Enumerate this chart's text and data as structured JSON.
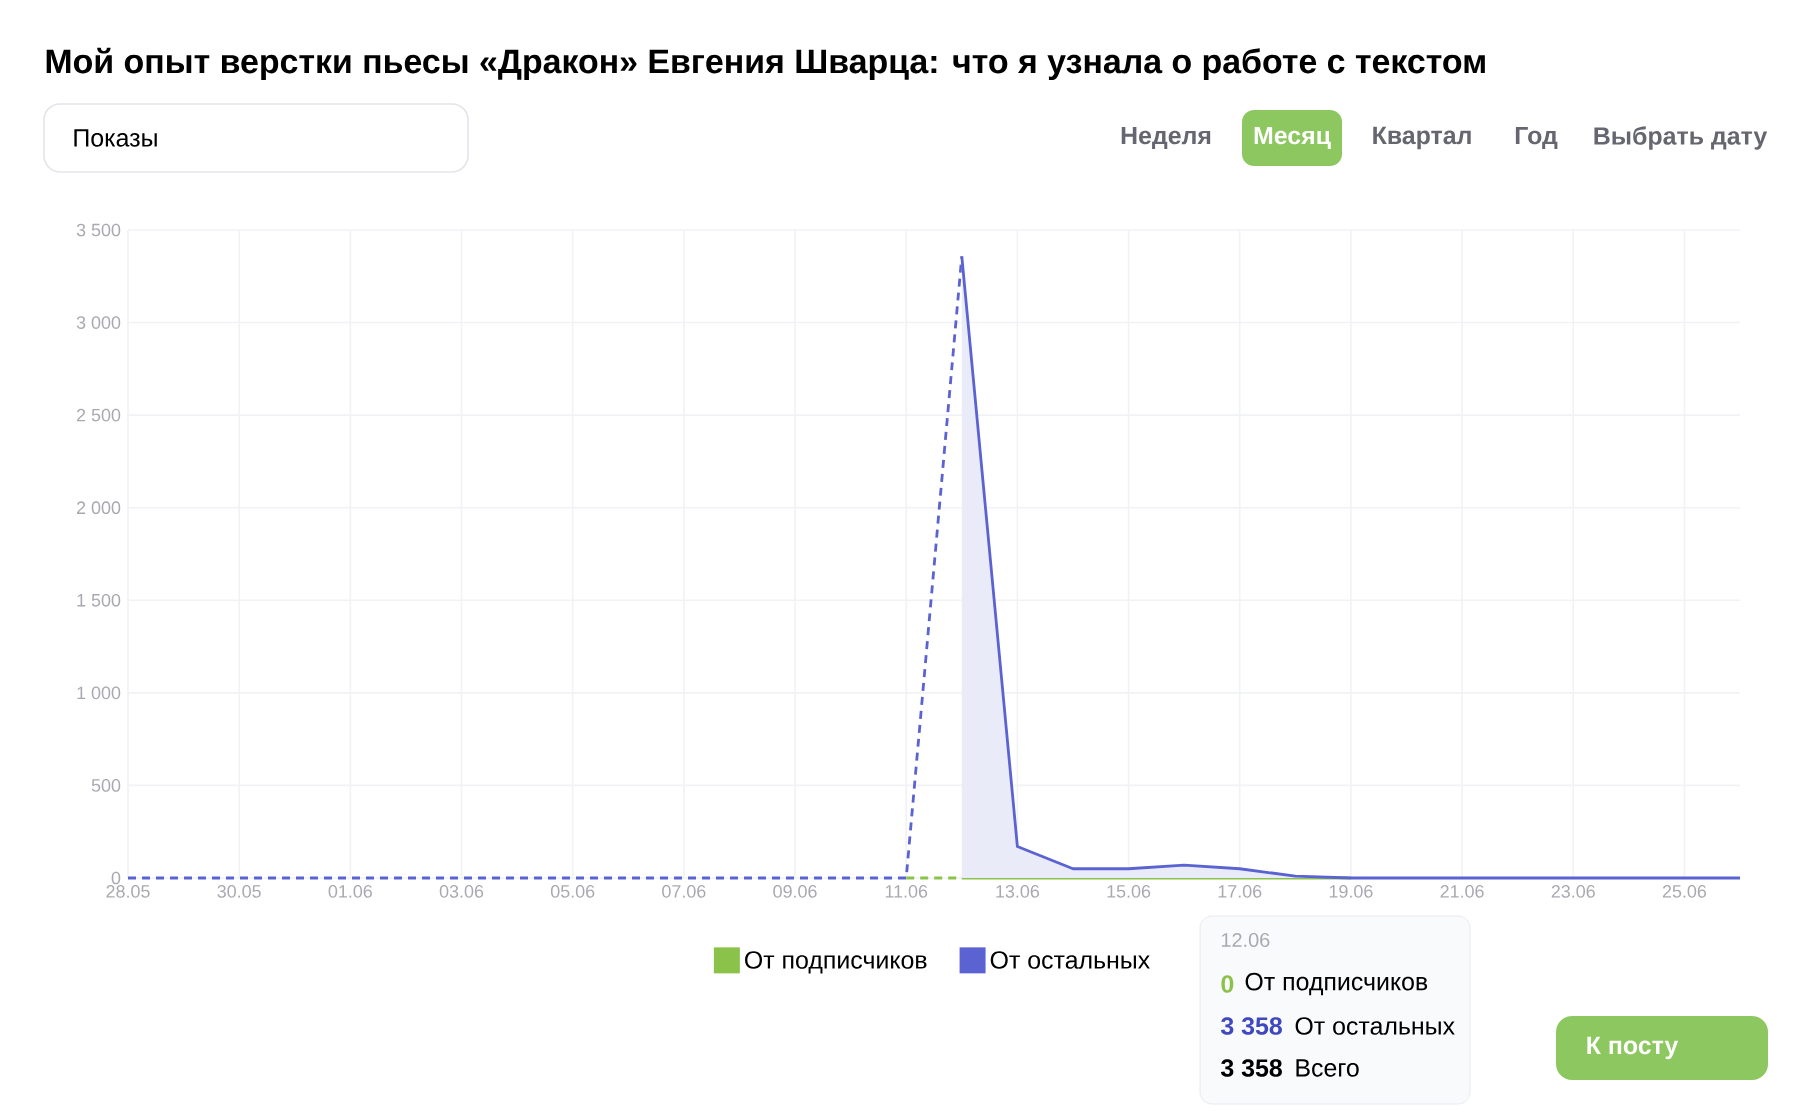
{
  "chart_data": {
    "type": "line",
    "title": "Мой опыт верстки пьесы «Дракон» Евгения Шварца: что я узнала о работе с текстом",
    "categories": [
      "28.05",
      null,
      "30.05",
      null,
      "01.06",
      null,
      "03.06",
      null,
      "05.06",
      null,
      "07.06",
      null,
      "09.06",
      null,
      "11.06",
      null,
      "13.06",
      null,
      "15.06",
      null,
      "17.06",
      null,
      "19.06",
      null,
      "21.06",
      null,
      "23.06",
      null,
      "25.06",
      null
    ],
    "series": [
      {
        "color": "#8bc34a",
        "line_style": "dashed",
        "values": [
          null,
          null,
          null,
          null,
          null,
          null,
          null,
          null,
          null,
          null,
          null,
          null,
          null,
          null,
          0,
          0,
          null,
          null,
          null,
          null,
          null,
          null,
          null,
          null,
          null,
          null,
          null,
          null,
          null,
          null
        ]
      },
      {
        "color": "#5b63d3",
        "line_style": "dashed",
        "values": [
          0,
          0,
          0,
          0,
          0,
          0,
          0,
          0,
          0,
          0,
          0,
          0,
          0,
          0,
          0,
          3358,
          null,
          null,
          null,
          null,
          null,
          null,
          null,
          null,
          null,
          null,
          null,
          null,
          null,
          null
        ]
      },
      {
        "name": "От подписчиков",
        "color": "#8bc34a",
        "line_style": "solid",
        "values": [
          null,
          null,
          null,
          null,
          null,
          null,
          null,
          null,
          null,
          null,
          null,
          null,
          null,
          null,
          null,
          0,
          0,
          0,
          0,
          0,
          0,
          0,
          0,
          null,
          null,
          null,
          null,
          null,
          null,
          null
        ]
      },
      {
        "name": "От остальных",
        "color": "#5b63d3",
        "type": "area",
        "line_style": "solid",
        "values": [
          null,
          null,
          null,
          null,
          null,
          null,
          null,
          null,
          null,
          null,
          null,
          null,
          null,
          null,
          null,
          3358,
          170,
          50,
          50,
          70,
          50,
          10,
          0,
          0,
          0,
          0,
          0,
          0,
          0,
          0
        ]
      }
    ],
    "ylim": [
      0,
      3500
    ],
    "yticks": [
      0,
      500,
      {
        "value": 1000,
        "label": "1 000"
      },
      {
        "value": 1500,
        "label": "1 500"
      },
      {
        "value": 2000,
        "label": "2 000"
      },
      {
        "value": 2500,
        "label": "2 500"
      },
      {
        "value": 3000,
        "label": "3 000"
      },
      {
        "value": 3500,
        "label": "3 500"
      }
    ],
    "grid": true,
    "legend": "bottom",
    "annotations": [
      "Показы",
      "Неделя",
      "Месяц",
      "Квартал",
      "Год",
      "Выбрать дату",
      "12.06",
      "0",
      "От подписчиков",
      "3 358",
      "От остальных",
      "3 358",
      "Всего",
      "К посту"
    ]
  }
}
